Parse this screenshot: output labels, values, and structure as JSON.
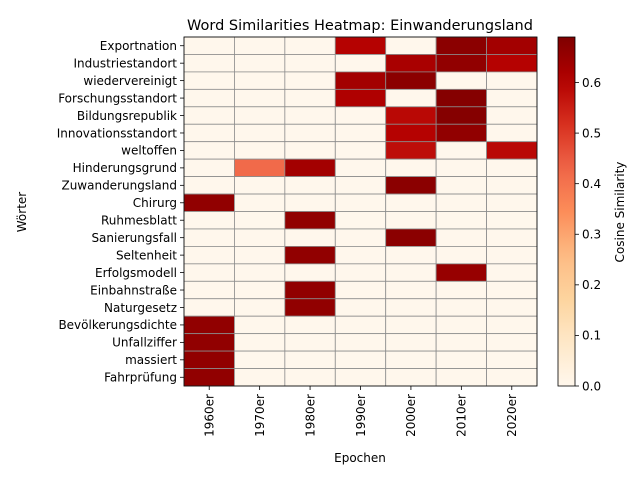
{
  "chart_data": {
    "type": "heatmap",
    "title": "Word Similarities Heatmap: Einwanderungsland",
    "xlabel": "Epochen",
    "ylabel": "Wörter",
    "x": [
      "1960er",
      "1970er",
      "1980er",
      "1990er",
      "2000er",
      "2010er",
      "2020er"
    ],
    "y": [
      "Exportnation",
      "Industriestandort",
      "wiedervereinigt",
      "Forschungsstandort",
      "Bildungsrepublik",
      "Innovationsstandort",
      "weltoffen",
      "Hinderungsgrund",
      "Zuwanderungsland",
      "Chirurg",
      "Ruhmesblatt",
      "Sanierungsfall",
      "Seltenheit",
      "Erfolgsmodell",
      "Einbahnstraße",
      "Naturgesetz",
      "Bevölkerungsdichte",
      "Unfallziffer",
      "massiert",
      "Fahrprüfung"
    ],
    "values": [
      [
        0,
        0,
        0,
        0.6,
        0,
        0.67,
        0.63
      ],
      [
        0,
        0,
        0,
        0,
        0.62,
        0.66,
        0.6
      ],
      [
        0,
        0,
        0,
        0.63,
        0.67,
        0,
        0
      ],
      [
        0,
        0,
        0,
        0.61,
        0,
        0.68,
        0
      ],
      [
        0,
        0,
        0,
        0,
        0.59,
        0.68,
        0
      ],
      [
        0,
        0,
        0,
        0,
        0.6,
        0.66,
        0
      ],
      [
        0,
        0,
        0,
        0,
        0.58,
        0,
        0.59
      ],
      [
        0,
        0.42,
        0.63,
        0,
        0,
        0,
        0
      ],
      [
        0,
        0,
        0,
        0,
        0.67,
        0,
        0
      ],
      [
        0.66,
        0,
        0,
        0,
        0,
        0,
        0
      ],
      [
        0,
        0,
        0.66,
        0,
        0,
        0,
        0
      ],
      [
        0,
        0,
        0,
        0,
        0.67,
        0,
        0
      ],
      [
        0,
        0,
        0.66,
        0,
        0,
        0,
        0
      ],
      [
        0,
        0,
        0,
        0,
        0,
        0.65,
        0
      ],
      [
        0,
        0,
        0.66,
        0,
        0,
        0,
        0
      ],
      [
        0,
        0,
        0.66,
        0,
        0,
        0,
        0
      ],
      [
        0.66,
        0,
        0,
        0,
        0,
        0,
        0
      ],
      [
        0.66,
        0,
        0,
        0,
        0,
        0,
        0
      ],
      [
        0.66,
        0,
        0,
        0,
        0,
        0,
        0
      ],
      [
        0.66,
        0,
        0,
        0,
        0,
        0,
        0
      ]
    ],
    "colorbar": {
      "label": "Cosine Similarity",
      "range": [
        0,
        0.69
      ],
      "ticks": [
        "0.0",
        "0.1",
        "0.2",
        "0.3",
        "0.4",
        "0.5",
        "0.6"
      ],
      "colormap": "OrRd"
    }
  }
}
